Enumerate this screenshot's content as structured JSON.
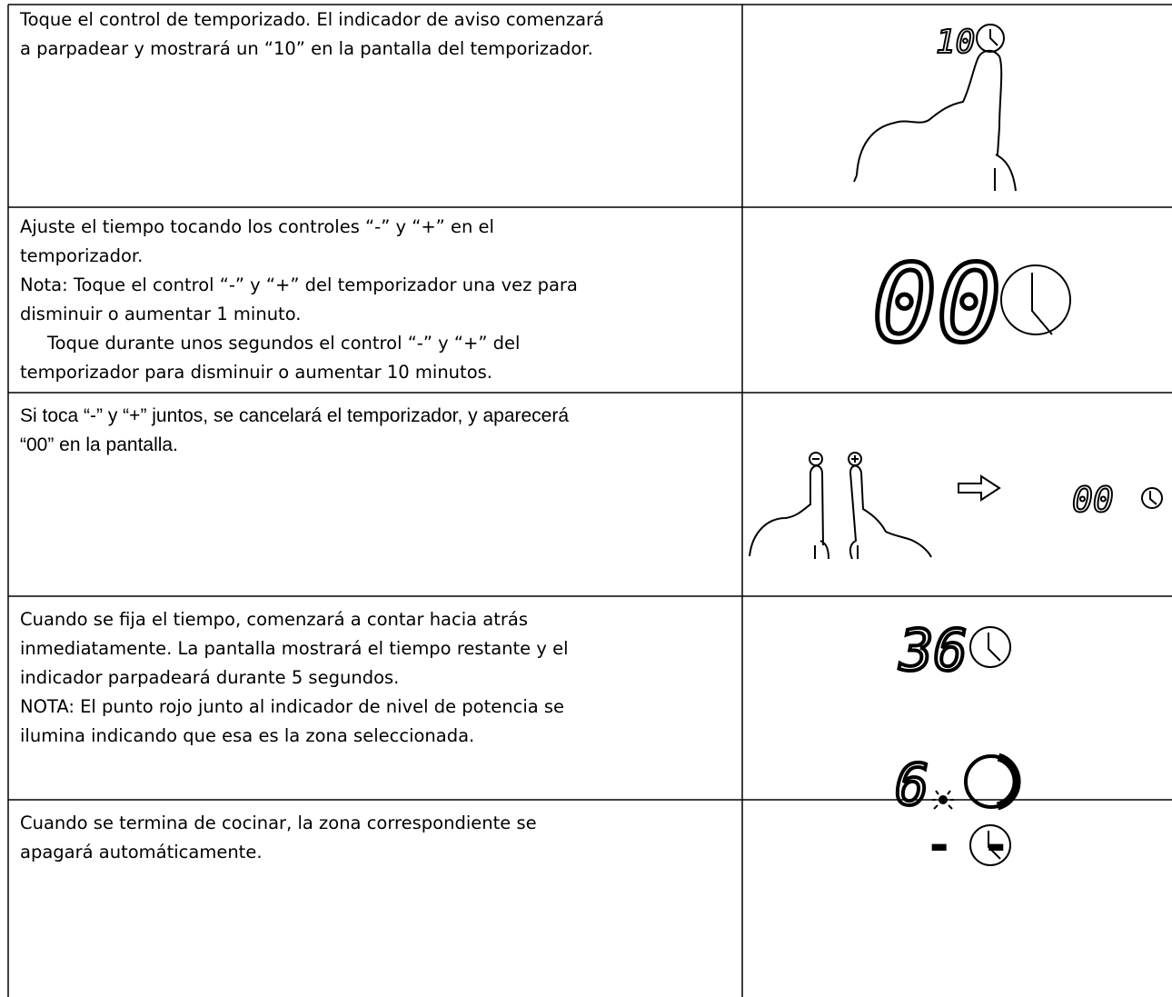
{
  "table": {
    "rows": [
      {
        "lines": [
          "Toque el control de temporizado. El indicador de aviso comenzará",
          "a parpadear y mostrará un “10” en la pantalla del temporizador."
        ],
        "display": [
          "10"
        ]
      },
      {
        "lines": [
          "Ajuste el tiempo tocando los controles “-” y “+” en el",
          "temporizador.",
          "Nota: Toque el control “-” y “+” del temporizador una vez para",
          "disminuir o aumentar 1 minuto.",
          "Toque durante unos segundos el control “-” y “+” del",
          "temporizador para disminuir o aumentar 10 minutos."
        ],
        "display": [
          "00"
        ]
      },
      {
        "lines": [
          "Si toca “-” y “+” juntos, se cancelará el temporizador, y aparecerá",
          "“00” en la pantalla."
        ],
        "display": [
          "00"
        ]
      },
      {
        "lines": [
          "Cuando se fija el tiempo, comenzará a contar hacia atrás",
          "inmediatamente. La pantalla mostrará el tiempo restante y el",
          "indicador parpadeará durante 5 segundos.",
          "NOTA: El punto rojo junto al indicador de nivel de potencia se",
          "ilumina indicando que esa es la zona seleccionada."
        ],
        "display": [
          "36",
          "6"
        ]
      },
      {
        "lines": [
          "Cuando se termina de cocinar, la zona correspondiente se",
          "apagará automáticamente."
        ],
        "display": [
          "- -"
        ]
      }
    ]
  }
}
